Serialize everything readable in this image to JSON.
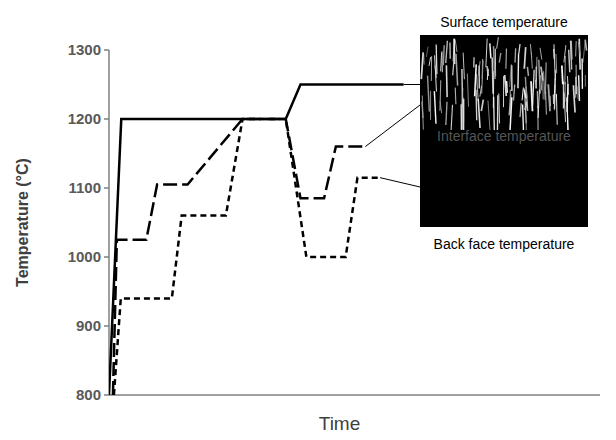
{
  "chart_data": {
    "type": "line",
    "x_label": "Time",
    "y_label": "Temperature (°C)",
    "xlim": [
      0,
      100
    ],
    "ylim": [
      800,
      1300
    ],
    "yticks": [
      800,
      900,
      1000,
      1100,
      1200,
      1300
    ],
    "tick_labels": "y",
    "grid": false,
    "series": [
      {
        "name": "Surface temperature",
        "color": "#000000",
        "line_style": "solid",
        "x": [
          0,
          2.5,
          36,
          39,
          60
        ],
        "values": [
          800,
          1200,
          1200,
          1250,
          1250
        ]
      },
      {
        "name": "Interface temperature",
        "color": "#000000",
        "line_style": "long-dash",
        "x": [
          0.8,
          1.6,
          7.6,
          9.8,
          16,
          27.2,
          36,
          39,
          43.8,
          46.2,
          52.2
        ],
        "values": [
          800,
          1025,
          1025,
          1105,
          1105,
          1200,
          1200,
          1085,
          1085,
          1160,
          1160
        ]
      },
      {
        "name": "Back face temperature",
        "color": "#000000",
        "line_style": "short-dash",
        "x": [
          1,
          2.4,
          12.8,
          14.8,
          23.8,
          27.2,
          36,
          40.2,
          48.2,
          50.6,
          55.2
        ],
        "values": [
          800,
          940,
          940,
          1060,
          1060,
          1200,
          1200,
          1000,
          1000,
          1115,
          1115
        ]
      }
    ]
  }
}
